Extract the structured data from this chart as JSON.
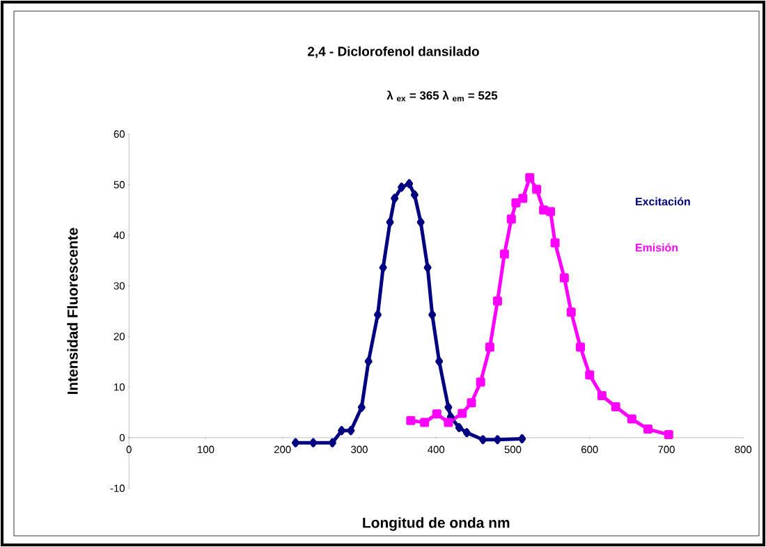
{
  "chart_data": {
    "type": "line",
    "title": "2,4 - Diclorofenol dansilado",
    "subtitle": "λ $_{ex}$ = 365      λ $_{em}$ = 525",
    "xlabel": "Longitud de onda    nm",
    "ylabel": "Intensidad Fluorescente",
    "xlim": [
      0,
      800
    ],
    "xticks": [
      0,
      100,
      200,
      300,
      400,
      500,
      600,
      700,
      800
    ],
    "ylim": [
      -10,
      60
    ],
    "yticks": [
      -10,
      0,
      10,
      20,
      30,
      40,
      50,
      60
    ],
    "grid": false,
    "legend": "right",
    "series": [
      {
        "name": "Excitación",
        "color": "#000080",
        "marker": "diamond",
        "x": [
          217,
          240,
          265,
          277,
          289,
          303,
          312,
          324,
          331,
          340,
          346,
          355,
          365,
          372,
          380,
          389,
          395,
          404,
          416,
          419,
          430,
          440,
          461,
          480,
          512
        ],
        "values": [
          -1,
          -1,
          -1,
          1.4,
          1.4,
          6,
          15.1,
          24.3,
          33.6,
          42.6,
          47.3,
          49.5,
          50.2,
          48,
          42.6,
          33.6,
          24.3,
          15.1,
          6,
          4.1,
          2,
          1,
          -0.4,
          -0.4,
          -0.2
        ]
      },
      {
        "name": "Emisión",
        "color": "#ff00ff",
        "marker": "square",
        "x": [
          367,
          385,
          401,
          416,
          434,
          446,
          458,
          470,
          480,
          489,
          498,
          504,
          513,
          522,
          531,
          540,
          549,
          555,
          567,
          576,
          588,
          600,
          616,
          634,
          655,
          676,
          703
        ],
        "values": [
          3.4,
          3,
          4.7,
          3,
          4.8,
          6.9,
          11,
          17.9,
          27,
          36.3,
          43.2,
          46.4,
          47.3,
          51.4,
          49.1,
          45,
          44.7,
          38.5,
          31.6,
          24.8,
          17.9,
          12.4,
          8.3,
          6.1,
          3.7,
          1.7,
          0.6
        ]
      }
    ]
  }
}
